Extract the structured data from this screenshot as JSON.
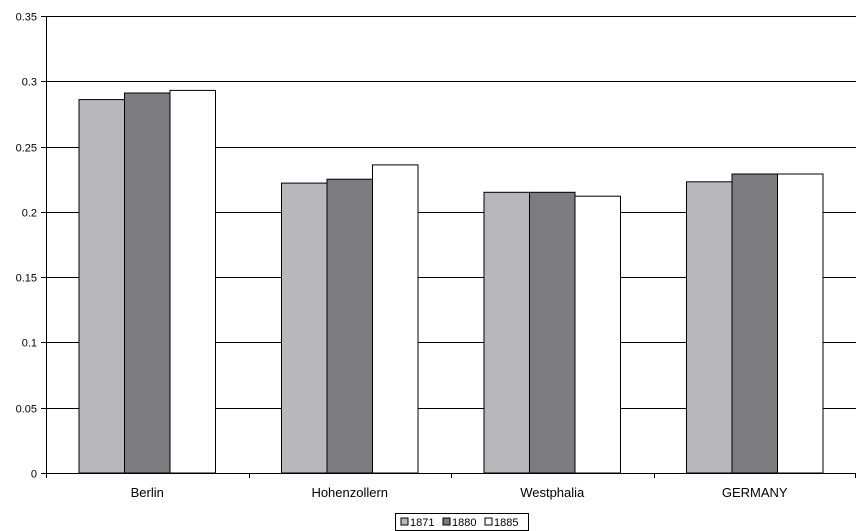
{
  "chart_data": {
    "type": "bar",
    "categories": [
      "Berlin",
      "Hohenzollern",
      "Westphalia",
      "GERMANY"
    ],
    "series": [
      {
        "name": "1871",
        "values": [
          0.286,
          0.222,
          0.215,
          0.223
        ],
        "color": "#b7b7bc"
      },
      {
        "name": "1880",
        "values": [
          0.291,
          0.225,
          0.215,
          0.229
        ],
        "color": "#7b7b80"
      },
      {
        "name": "1885",
        "values": [
          0.293,
          0.236,
          0.212,
          0.229
        ],
        "color": "#ffffff"
      }
    ],
    "yticks": [
      "0",
      "0.05",
      "0.1",
      "0.15",
      "0.2",
      "0.25",
      "0.3",
      "0.35"
    ],
    "ylim": [
      0,
      0.35
    ],
    "grid": true,
    "legend_position": "bottom"
  }
}
